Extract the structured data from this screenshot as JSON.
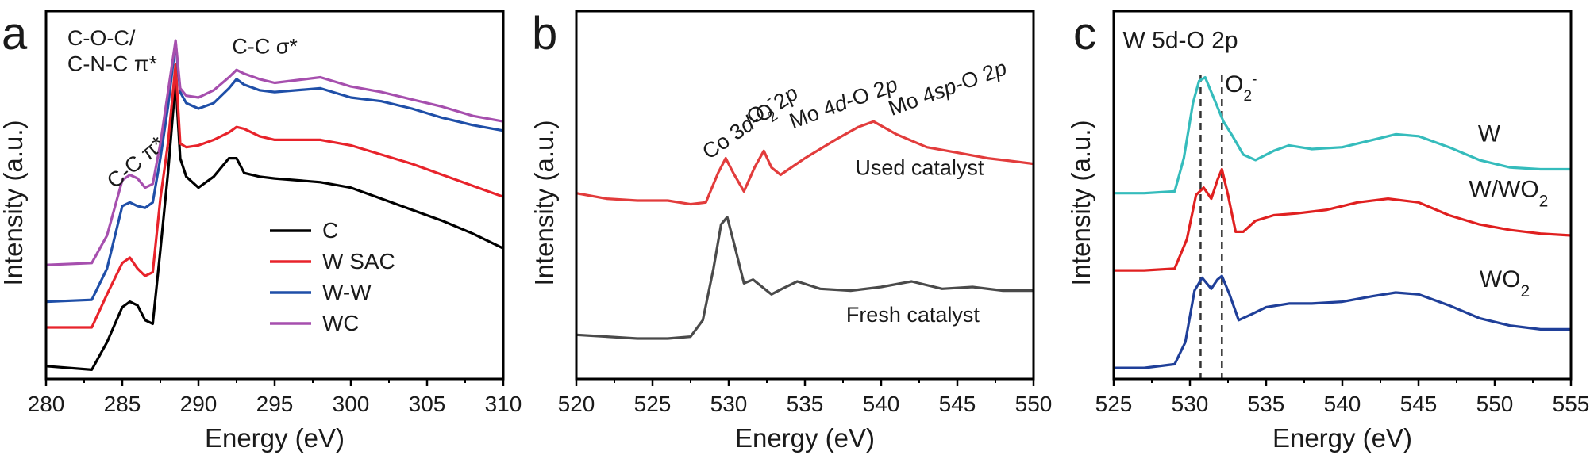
{
  "chart_data": [
    {
      "panel": "a",
      "type": "line",
      "xlabel": "Energy (eV)",
      "ylabel": "Intensity (a.u.)",
      "xlim": [
        280,
        310
      ],
      "ylim": [
        0,
        10
      ],
      "x_ticks": [
        280,
        285,
        290,
        295,
        300,
        305,
        310
      ],
      "legend_position": "center-right",
      "grid": false,
      "annotations": [
        {
          "text": "C-O-C/",
          "x": 281.4,
          "y": 9.07
        },
        {
          "text": "C-N-C π*",
          "x": 281.4,
          "y": 8.37
        },
        {
          "text": "C-C  σ*",
          "x": 292.2,
          "y": 8.85
        },
        {
          "text": "C-C π*",
          "x": 284.5,
          "y": 5.15,
          "rotate": -40
        }
      ],
      "series": [
        {
          "name": "C",
          "color": "#000000",
          "x": [
            280,
            283,
            284,
            285,
            285.5,
            286,
            286.5,
            287,
            287.5,
            288,
            288.5,
            288.8,
            289.2,
            290,
            291,
            292,
            292.5,
            293,
            294,
            295,
            298,
            300,
            302,
            304,
            306,
            308,
            310
          ],
          "y": [
            0.35,
            0.25,
            1.0,
            1.95,
            2.1,
            2.0,
            1.6,
            1.5,
            3.5,
            5.6,
            8.1,
            6.0,
            5.5,
            5.2,
            5.5,
            6.0,
            6.0,
            5.6,
            5.5,
            5.45,
            5.35,
            5.2,
            4.9,
            4.6,
            4.3,
            3.95,
            3.55
          ]
        },
        {
          "name": "W SAC",
          "color": "#e8232b",
          "x": [
            280,
            283,
            284,
            285,
            285.5,
            286,
            286.5,
            287,
            287.5,
            288,
            288.5,
            288.8,
            289.2,
            290,
            291,
            292,
            292.5,
            293,
            294,
            295,
            298,
            300,
            302,
            304,
            306,
            308,
            310
          ],
          "y": [
            1.4,
            1.4,
            2.3,
            3.15,
            3.3,
            3.0,
            2.8,
            2.9,
            4.9,
            6.4,
            8.55,
            6.4,
            6.3,
            6.35,
            6.5,
            6.7,
            6.85,
            6.8,
            6.6,
            6.5,
            6.5,
            6.35,
            6.1,
            5.85,
            5.55,
            5.25,
            4.95
          ]
        },
        {
          "name": "W-W",
          "color": "#1f4fa8",
          "x": [
            280,
            283,
            284,
            285,
            285.5,
            286,
            286.5,
            287,
            287.5,
            288,
            288.5,
            288.8,
            289.2,
            290,
            291,
            292,
            292.5,
            293,
            294,
            295,
            298,
            300,
            302,
            304,
            306,
            308,
            310
          ],
          "y": [
            2.1,
            2.15,
            3.0,
            4.7,
            4.8,
            4.7,
            4.65,
            4.8,
            6.0,
            7.4,
            9.15,
            7.8,
            7.5,
            7.35,
            7.5,
            7.9,
            8.15,
            8.0,
            7.85,
            7.8,
            7.9,
            7.65,
            7.55,
            7.35,
            7.1,
            6.9,
            6.75
          ]
        },
        {
          "name": "WC",
          "color": "#a64fae",
          "x": [
            280,
            283,
            284,
            285,
            285.5,
            286,
            286.5,
            287,
            287.5,
            288,
            288.5,
            288.8,
            289.2,
            290,
            291,
            292,
            292.5,
            293,
            294,
            295,
            298,
            300,
            302,
            304,
            306,
            308,
            310
          ],
          "y": [
            3.1,
            3.15,
            3.9,
            5.4,
            5.55,
            5.45,
            5.2,
            5.3,
            6.4,
            7.8,
            9.2,
            7.9,
            7.7,
            7.65,
            7.85,
            8.2,
            8.4,
            8.3,
            8.15,
            8.05,
            8.2,
            7.95,
            7.8,
            7.6,
            7.4,
            7.15,
            7.0
          ]
        }
      ]
    },
    {
      "panel": "b",
      "type": "line",
      "xlabel": "Energy (eV)",
      "ylabel": "Intensity (a.u.)",
      "xlim": [
        520,
        550
      ],
      "ylim": [
        0,
        10
      ],
      "x_ticks": [
        520,
        525,
        530,
        535,
        540,
        545,
        550
      ],
      "grid": false,
      "annotations": [
        {
          "text": "Co 3d-O 2p",
          "x": 528.7,
          "y": 5.95,
          "rotate": -35
        },
        {
          "text": "O2-",
          "x": 531.6,
          "y": 6.9,
          "rotate": -35
        },
        {
          "text": "Mo 4d-O 2p",
          "x": 534.2,
          "y": 6.8,
          "rotate": -20
        },
        {
          "text": "Mo 4sp-O 2p",
          "x": 540.7,
          "y": 7.15,
          "rotate": -20
        }
      ],
      "series": [
        {
          "name": "Used catalyst",
          "color": "#e23c3c",
          "x": [
            520,
            522,
            524,
            526,
            527.5,
            528.5,
            529.3,
            529.8,
            530.3,
            531,
            531.7,
            532.3,
            532.8,
            533.4,
            535,
            537,
            538.5,
            539.5,
            541,
            543,
            545,
            547,
            549,
            550
          ],
          "y": [
            5.05,
            4.9,
            4.85,
            4.85,
            4.75,
            4.8,
            5.6,
            6.0,
            5.6,
            5.1,
            5.75,
            6.2,
            5.75,
            5.55,
            6.0,
            6.5,
            6.85,
            7.0,
            6.65,
            6.3,
            6.15,
            6.0,
            5.9,
            5.85
          ]
        },
        {
          "name": "Fresh catalyst",
          "color": "#4a4a4a",
          "x": [
            520,
            522,
            524,
            526,
            527.5,
            528.3,
            529.0,
            529.5,
            529.9,
            530.4,
            531.0,
            531.6,
            532.2,
            532.8,
            533.5,
            534.5,
            536,
            538,
            540,
            542,
            544,
            546,
            548,
            550
          ],
          "y": [
            1.2,
            1.15,
            1.1,
            1.1,
            1.15,
            1.6,
            3.0,
            4.2,
            4.4,
            3.6,
            2.6,
            2.7,
            2.5,
            2.3,
            2.45,
            2.65,
            2.45,
            2.4,
            2.5,
            2.65,
            2.45,
            2.5,
            2.4,
            2.4
          ]
        }
      ]
    },
    {
      "panel": "c",
      "type": "line",
      "xlabel": "Energy (eV)",
      "ylabel": "Intensity (a.u.)",
      "xlim": [
        525,
        555
      ],
      "ylim": [
        0,
        10
      ],
      "x_ticks": [
        525,
        530,
        535,
        540,
        545,
        550,
        555
      ],
      "grid": false,
      "dashed_lines_x": [
        530.7,
        532.1
      ],
      "annotations": [
        {
          "text": "W 5d-O 2p",
          "x": 525.6,
          "y": 9.0
        },
        {
          "text": "O2-",
          "x": 532.3,
          "y": 7.8
        },
        {
          "text": "W",
          "x": 548.9,
          "y": 6.45
        },
        {
          "text": "W/WO2",
          "x": 548.3,
          "y": 4.95
        },
        {
          "text": "WO2",
          "x": 549.0,
          "y": 2.5
        }
      ],
      "series": [
        {
          "name": "W",
          "color": "#35bcbc",
          "x": [
            525,
            527,
            529,
            529.6,
            530.2,
            530.6,
            531.0,
            531.5,
            532.2,
            532.8,
            533.5,
            534.3,
            535.5,
            536.5,
            538,
            540,
            542,
            543.5,
            545,
            547,
            549,
            551,
            553,
            555
          ],
          "y": [
            5.05,
            5.05,
            5.1,
            6.0,
            7.5,
            8.1,
            8.2,
            7.7,
            7.0,
            6.6,
            6.1,
            5.95,
            6.2,
            6.35,
            6.25,
            6.3,
            6.5,
            6.65,
            6.6,
            6.3,
            5.95,
            5.75,
            5.7,
            5.7
          ]
        },
        {
          "name": "W/WO2",
          "color": "#e02020",
          "x": [
            525,
            527,
            529,
            529.8,
            530.4,
            530.9,
            531.4,
            531.8,
            532.1,
            532.5,
            533.0,
            533.5,
            534.3,
            535.5,
            537,
            539,
            541,
            543,
            545,
            547,
            549,
            551,
            553,
            555
          ],
          "y": [
            2.95,
            2.95,
            3.0,
            3.8,
            5.0,
            5.2,
            4.9,
            5.4,
            5.7,
            5.0,
            4.0,
            4.0,
            4.3,
            4.45,
            4.5,
            4.6,
            4.8,
            4.9,
            4.8,
            4.45,
            4.2,
            4.05,
            3.95,
            3.9
          ]
        },
        {
          "name": "WO2",
          "color": "#1f3f99",
          "x": [
            525,
            527,
            529,
            529.7,
            530.3,
            530.8,
            531.4,
            531.8,
            532.1,
            532.6,
            533.2,
            534,
            535,
            536.5,
            538,
            540,
            542,
            543.5,
            545,
            547,
            549,
            551,
            553,
            555
          ],
          "y": [
            0.3,
            0.3,
            0.4,
            1.0,
            2.4,
            2.75,
            2.45,
            2.7,
            2.8,
            2.3,
            1.6,
            1.75,
            1.95,
            2.05,
            2.05,
            2.1,
            2.25,
            2.35,
            2.3,
            2.0,
            1.65,
            1.45,
            1.35,
            1.35
          ]
        }
      ]
    }
  ]
}
